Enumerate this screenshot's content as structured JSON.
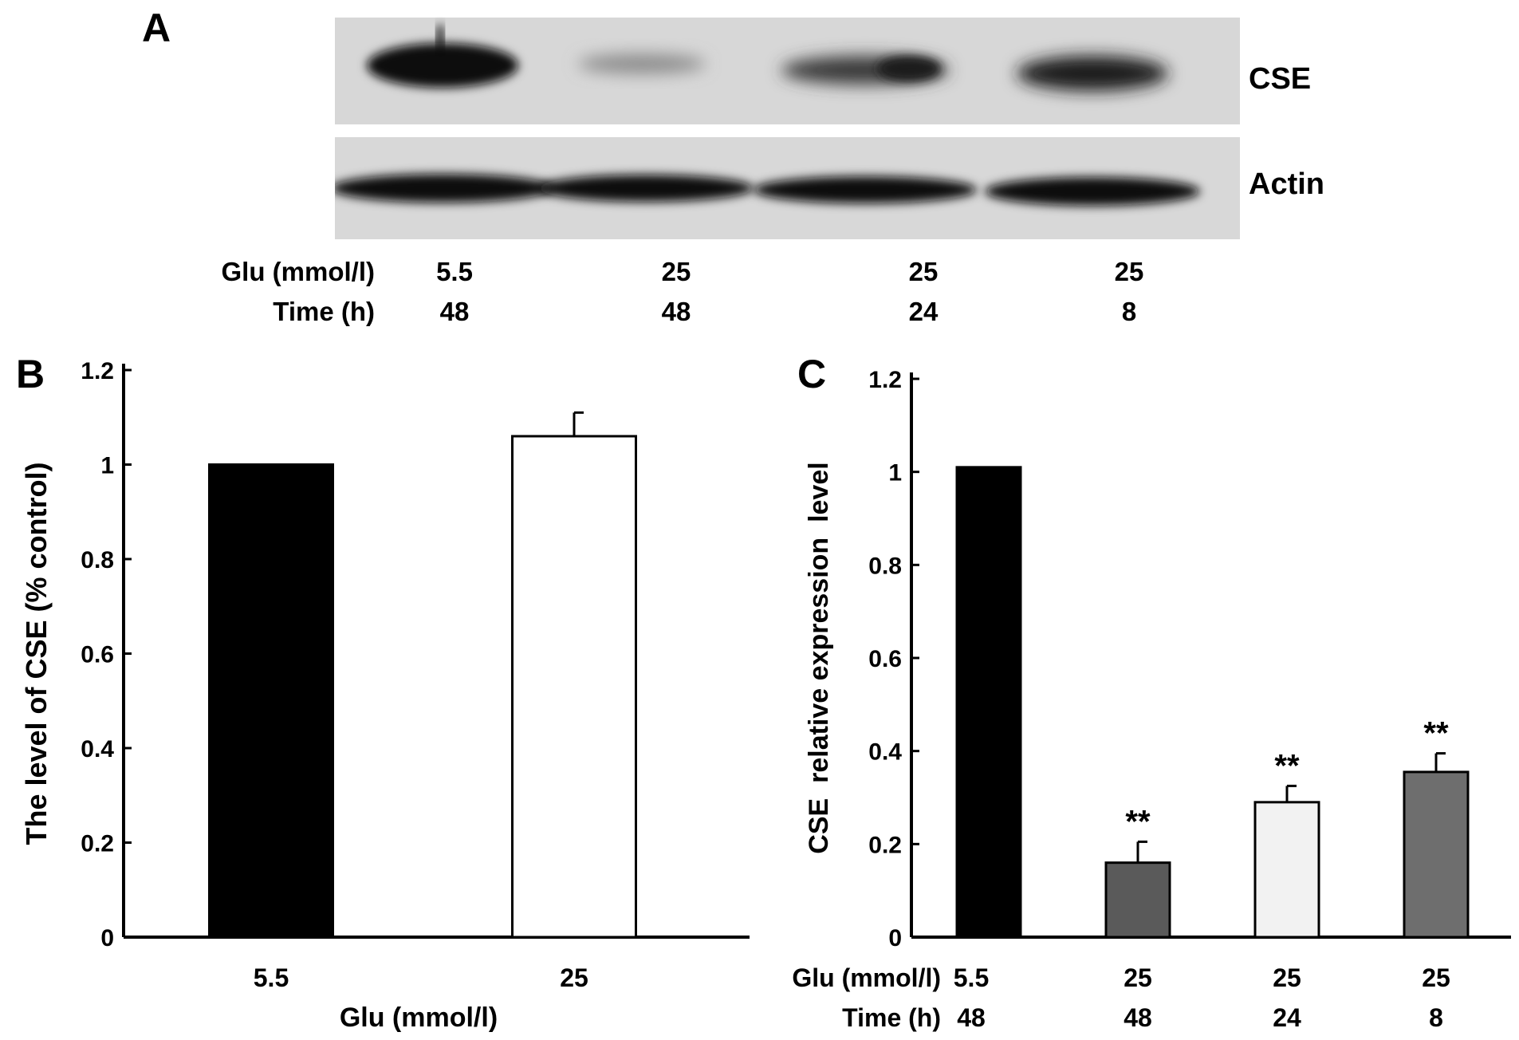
{
  "panel_a": {
    "letter": "A",
    "blot_labels": [
      "CSE",
      "Actin"
    ],
    "row_labels": [
      "Glu (mmol/l)",
      "Time (h)"
    ],
    "lanes": [
      {
        "glu": "5.5",
        "time": "48"
      },
      {
        "glu": "25",
        "time": "48"
      },
      {
        "glu": "25",
        "time": "24"
      },
      {
        "glu": "25",
        "time": "8"
      }
    ]
  },
  "chart_data": [
    {
      "panel": "B",
      "type": "bar",
      "ylabel": "The level of CSE (% control)",
      "xlabel": "Glu (mmol/l)",
      "categories": [
        "5.5",
        "25"
      ],
      "values": [
        1.0,
        1.06
      ],
      "errors": [
        0,
        0.05
      ],
      "ylim": [
        0,
        1.2
      ],
      "yticks": [
        "0",
        "0.2",
        "0.4",
        "0.6",
        "0.8",
        "1",
        "1.2"
      ],
      "fills": [
        "#000000",
        "#ffffff"
      ]
    },
    {
      "panel": "C",
      "type": "bar",
      "ylabel": "CSE  relative expression  level",
      "row_labels": [
        "Glu (mmol/l)",
        "Time (h)"
      ],
      "categories": [
        {
          "glu": "5.5",
          "time": "48"
        },
        {
          "glu": "25",
          "time": "48"
        },
        {
          "glu": "25",
          "time": "24"
        },
        {
          "glu": "25",
          "time": "8"
        }
      ],
      "values": [
        1.01,
        0.16,
        0.29,
        0.355
      ],
      "errors": [
        0,
        0.045,
        0.035,
        0.04
      ],
      "significance": [
        "",
        "**",
        "**",
        "**"
      ],
      "ylim": [
        0,
        1.2
      ],
      "yticks": [
        "0",
        "0.2",
        "0.4",
        "0.6",
        "0.8",
        "1",
        "1.2"
      ],
      "fills": [
        "#000000",
        "#5a5a5a",
        "#f2f2f2",
        "#6e6e6e"
      ]
    }
  ]
}
